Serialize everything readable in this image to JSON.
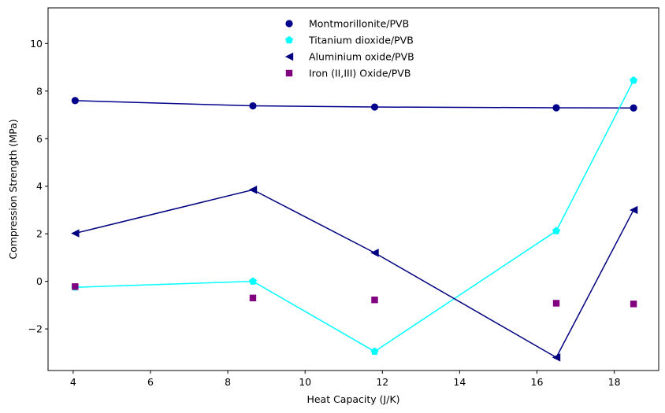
{
  "chart_data": {
    "type": "line",
    "title": "",
    "xlabel": "Heat Capacity (J/K)",
    "ylabel": "Compression Strength (MPa)",
    "xlim": [
      3.35,
      19.15
    ],
    "ylim": [
      -3.75,
      11.5
    ],
    "xticks": [
      4,
      6,
      8,
      10,
      12,
      14,
      16,
      18
    ],
    "yticks": [
      -2,
      0,
      2,
      4,
      6,
      8,
      10
    ],
    "xtick_labels": [
      "4",
      "6",
      "8",
      "10",
      "12",
      "14",
      "16",
      "18"
    ],
    "ytick_labels": [
      "−2",
      "0",
      "2",
      "4",
      "6",
      "8",
      "10"
    ],
    "grid": false,
    "legend_position": "top-center",
    "series": [
      {
        "name": "Montmorillonite/PVB",
        "color": "#00008b",
        "marker": "circle",
        "line": true,
        "x": [
          4.05,
          8.65,
          11.8,
          16.5,
          18.5
        ],
        "y": [
          7.6,
          7.38,
          7.33,
          7.3,
          7.29
        ]
      },
      {
        "name": "Titanium dioxide/PVB",
        "color": "#00ffff",
        "marker": "pentagon",
        "line": true,
        "x": [
          4.05,
          8.65,
          11.8,
          16.5,
          18.5
        ],
        "y": [
          -0.25,
          0.0,
          -2.95,
          2.12,
          8.45
        ]
      },
      {
        "name": "Aluminium oxide/PVB",
        "color": "#000080",
        "marker": "triangle-left",
        "line": true,
        "x": [
          4.05,
          8.65,
          11.8,
          16.5,
          18.5
        ],
        "y": [
          2.02,
          3.85,
          1.2,
          -3.2,
          3.0
        ]
      },
      {
        "name": "Iron (II,III) Oxide/PVB",
        "color": "#800080",
        "marker": "square",
        "line": false,
        "x": [
          4.05,
          8.65,
          11.8,
          16.5,
          18.5
        ],
        "y": [
          -0.22,
          -0.7,
          -0.78,
          -0.92,
          -0.95
        ]
      }
    ]
  }
}
